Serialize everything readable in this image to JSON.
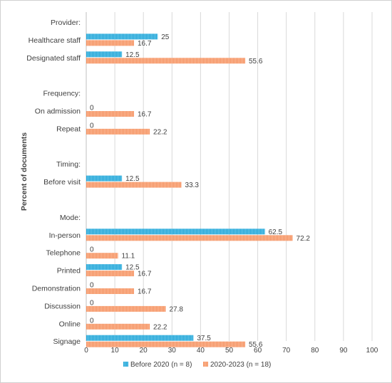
{
  "chart_data": {
    "type": "bar",
    "orientation": "horizontal",
    "ylabel": "Percent of documents",
    "xlim": [
      0,
      100
    ],
    "xticks": [
      0,
      10,
      20,
      30,
      40,
      50,
      60,
      70,
      80,
      90,
      100
    ],
    "grid": true,
    "legend_position": "bottom",
    "categories": [
      {
        "label": "Provider:",
        "header": true
      },
      {
        "label": "Healthcare staff"
      },
      {
        "label": "Designated staff"
      },
      {
        "label": "",
        "spacer": true
      },
      {
        "label": "Frequency:",
        "header": true
      },
      {
        "label": "On admission"
      },
      {
        "label": "Repeat"
      },
      {
        "label": "",
        "spacer": true
      },
      {
        "label": "Timing:",
        "header": true
      },
      {
        "label": "Before visit"
      },
      {
        "label": "",
        "spacer": true
      },
      {
        "label": "Mode:",
        "header": true
      },
      {
        "label": "In-person"
      },
      {
        "label": "Telephone"
      },
      {
        "label": "Printed"
      },
      {
        "label": "Demonstration"
      },
      {
        "label": "Discussion"
      },
      {
        "label": "Online"
      },
      {
        "label": "Signage"
      }
    ],
    "series": [
      {
        "name": "Before 2020 (n = 8)",
        "color": "#1ba3d6",
        "values": [
          null,
          25,
          12.5,
          null,
          null,
          0,
          0,
          null,
          null,
          12.5,
          null,
          null,
          62.5,
          0,
          12.5,
          0,
          0,
          0,
          37.5
        ],
        "labels": [
          "",
          "25",
          "12.5",
          "",
          "",
          "0",
          "0",
          "",
          "",
          "12.5",
          "",
          "",
          "62.5",
          "0",
          "12.5",
          "0",
          "0",
          "0",
          "37.5"
        ]
      },
      {
        "name": "2020-2023 (n = 18)",
        "color": "#f58d5a",
        "values": [
          null,
          16.7,
          55.6,
          null,
          null,
          16.7,
          22.2,
          null,
          null,
          33.3,
          null,
          null,
          72.2,
          11.1,
          16.7,
          16.7,
          27.8,
          22.2,
          55.6
        ],
        "labels": [
          "",
          "16.7",
          "55.6",
          "",
          "",
          "16.7",
          "22.2",
          "",
          "",
          "33.3",
          "",
          "",
          "72.2",
          "11.1",
          "16.7",
          "16.7",
          "27.8",
          "22.2",
          "55.6"
        ]
      }
    ]
  }
}
